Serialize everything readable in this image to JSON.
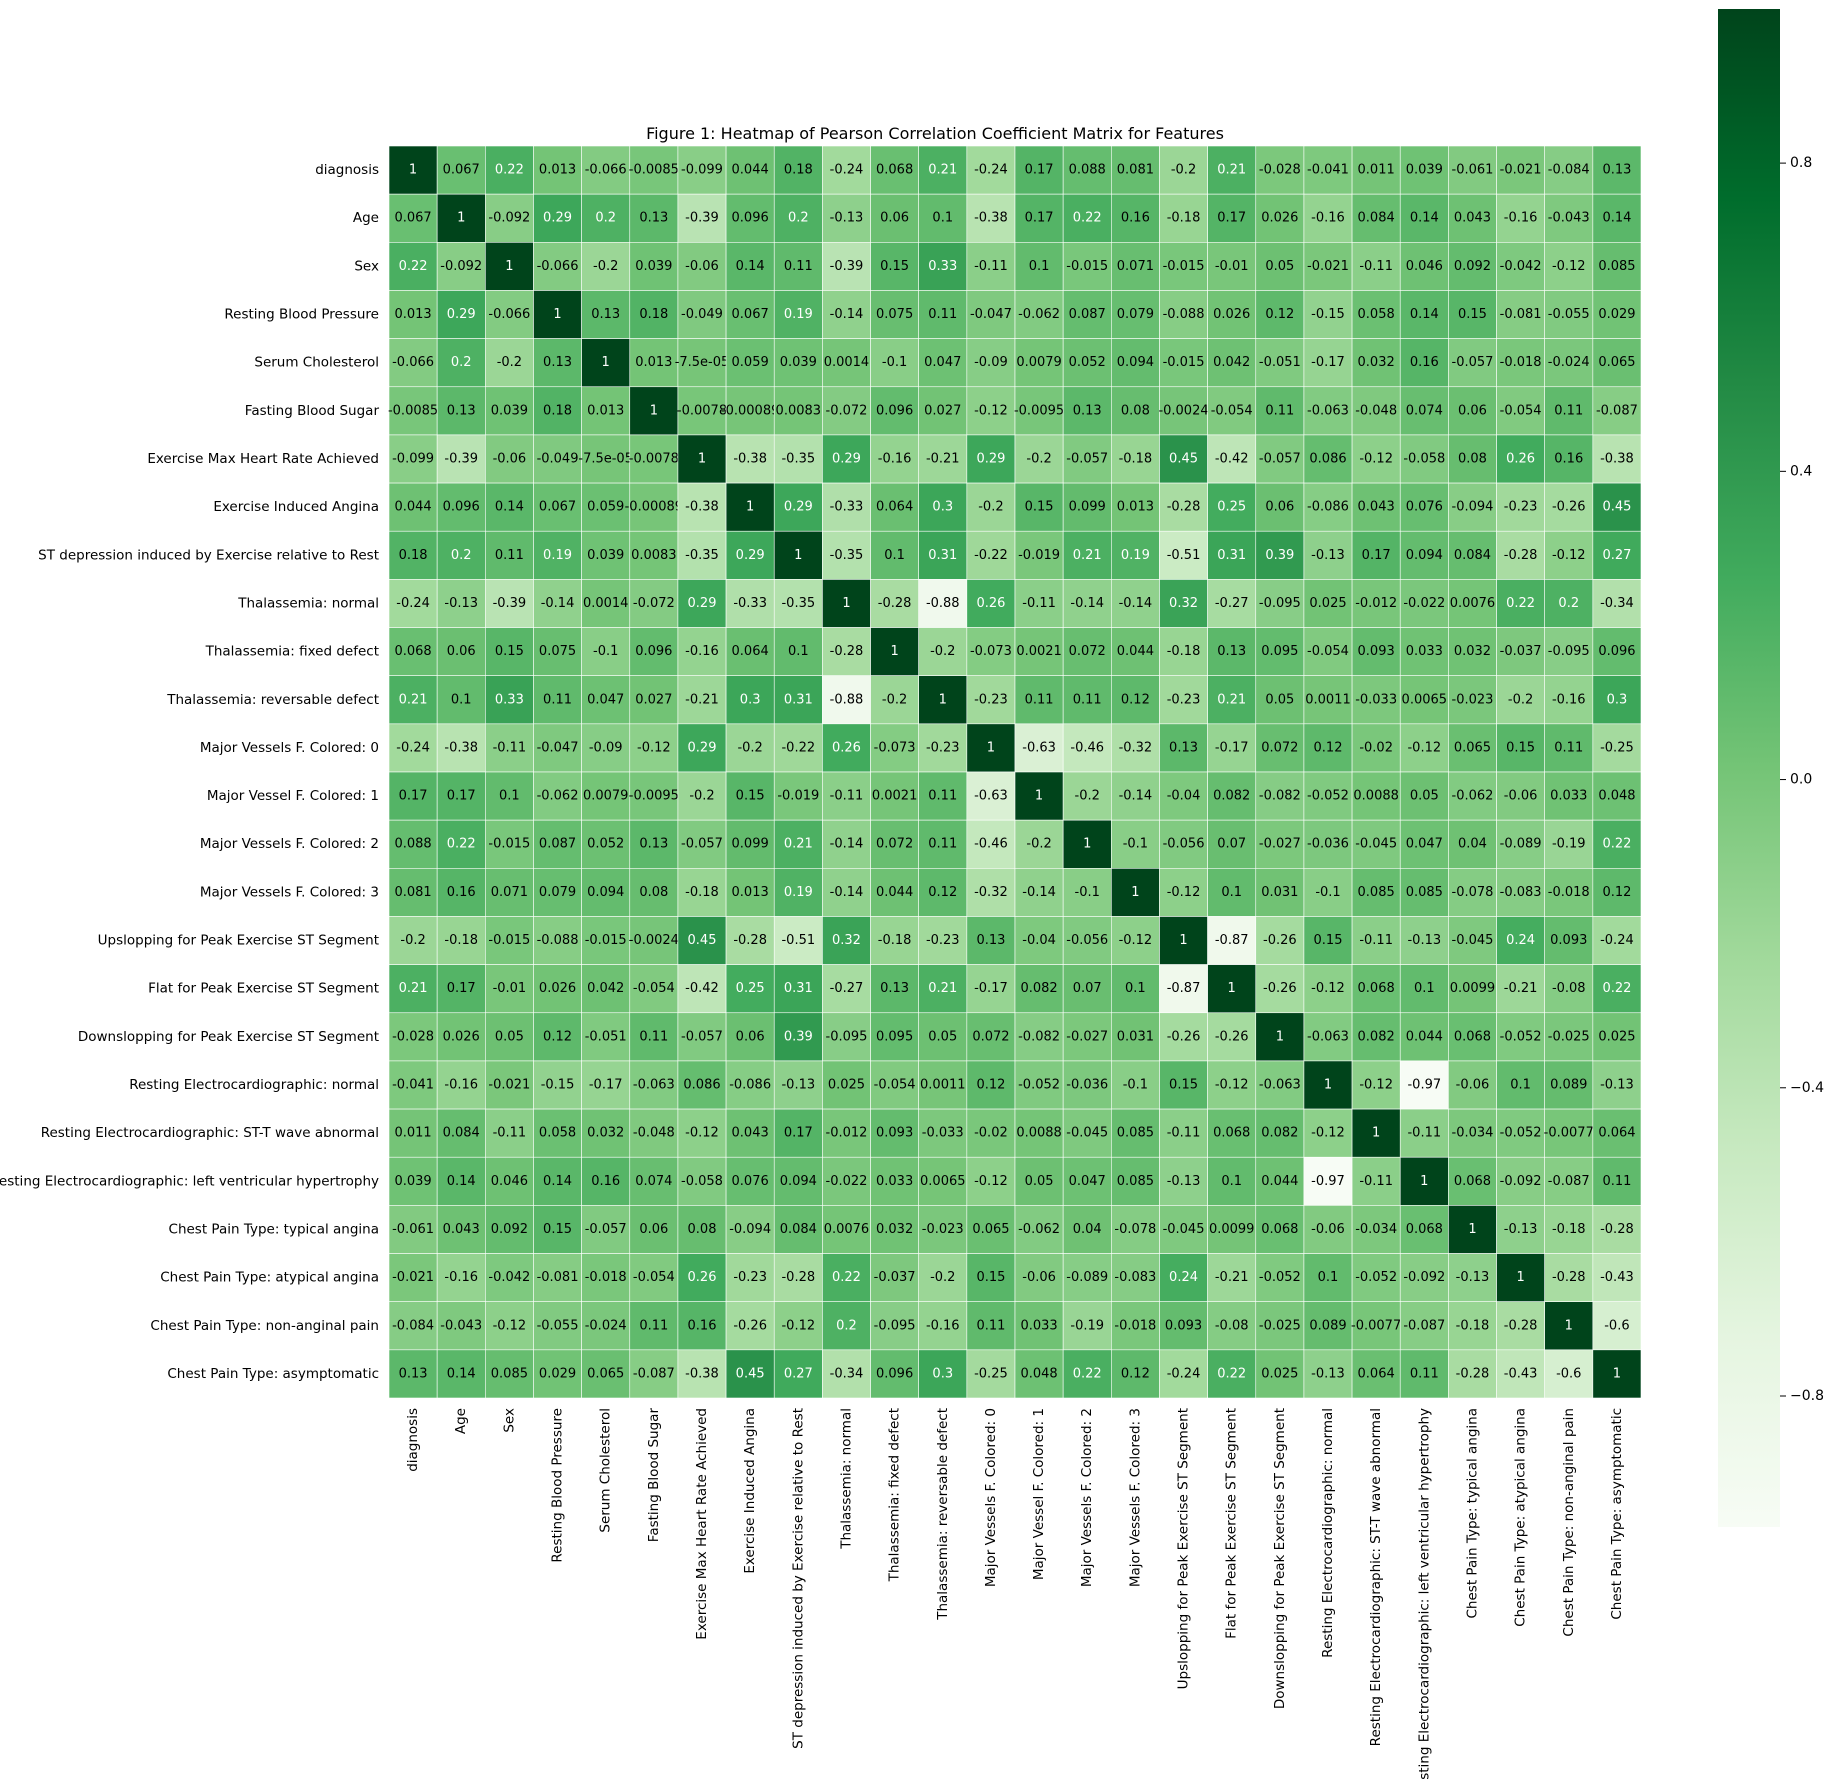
{
  "chart_data": {
    "type": "heatmap",
    "title": "Figure 1:  Heatmap of Pearson Correlation Coefficient Matrix for Features",
    "labels": [
      "diagnosis",
      "Age",
      "Sex",
      "Resting Blood Pressure",
      "Serum Cholesterol",
      "Fasting Blood Sugar",
      "Exercise Max Heart Rate Achieved",
      "Exercise Induced Angina",
      "ST depression induced by Exercise relative to Rest",
      "Thalassemia: normal",
      "Thalassemia: fixed defect",
      "Thalassemia: reversable defect",
      "Major Vessels F. Colored: 0",
      "Major Vessel F. Colored: 1",
      "Major Vessels F. Colored: 2",
      "Major Vessels F. Colored: 3",
      "Upslopping for Peak Exercise ST Segment",
      "Flat for Peak Exercise ST Segment",
      "Downslopping for Peak Exercise ST Segment",
      "Resting Electrocardiographic: normal",
      "Resting Electrocardiographic: ST-T wave abnormal",
      "Resting Electrocardiographic: left ventricular hypertrophy",
      "Chest Pain Type: typical angina",
      "Chest Pain Type: atypical angina",
      "Chest Pain Type: non-anginal pain",
      "Chest Pain Type: asymptomatic"
    ],
    "matrix": [
      [
        "1",
        "0.067",
        "0.22",
        "0.013",
        "-0.066",
        "-0.0085",
        "-0.099",
        "0.044",
        "0.18",
        "-0.24",
        "0.068",
        "0.21",
        "-0.24",
        "0.17",
        "0.088",
        "0.081",
        "-0.2",
        "0.21",
        "-0.028",
        "-0.041",
        "0.011",
        "0.039",
        "-0.061",
        "-0.021",
        "-0.084",
        "0.13"
      ],
      [
        "0.067",
        "1",
        "-0.092",
        "0.29",
        "0.2",
        "0.13",
        "-0.39",
        "0.096",
        "0.2",
        "-0.13",
        "0.06",
        "0.1",
        "-0.38",
        "0.17",
        "0.22",
        "0.16",
        "-0.18",
        "0.17",
        "0.026",
        "-0.16",
        "0.084",
        "0.14",
        "0.043",
        "-0.16",
        "-0.043",
        "0.14"
      ],
      [
        "0.22",
        "-0.092",
        "1",
        "-0.066",
        "-0.2",
        "0.039",
        "-0.06",
        "0.14",
        "0.11",
        "-0.39",
        "0.15",
        "0.33",
        "-0.11",
        "0.1",
        "-0.015",
        "0.071",
        "-0.015",
        "-0.01",
        "0.05",
        "-0.021",
        "-0.11",
        "0.046",
        "0.092",
        "-0.042",
        "-0.12",
        "0.085"
      ],
      [
        "0.013",
        "0.29",
        "-0.066",
        "1",
        "0.13",
        "0.18",
        "-0.049",
        "0.067",
        "0.19",
        "-0.14",
        "0.075",
        "0.11",
        "-0.047",
        "-0.062",
        "0.087",
        "0.079",
        "-0.088",
        "0.026",
        "0.12",
        "-0.15",
        "0.058",
        "0.14",
        "0.15",
        "-0.081",
        "-0.055",
        "0.029"
      ],
      [
        "-0.066",
        "0.2",
        "-0.2",
        "0.13",
        "1",
        "0.013",
        "-7.5e-05",
        "0.059",
        "0.039",
        "0.0014",
        "-0.1",
        "0.047",
        "-0.09",
        "0.0079",
        "0.052",
        "0.094",
        "-0.015",
        "0.042",
        "-0.051",
        "-0.17",
        "0.032",
        "0.16",
        "-0.057",
        "-0.018",
        "-0.024",
        "0.065"
      ],
      [
        "-0.0085",
        "0.13",
        "0.039",
        "0.18",
        "0.013",
        "1",
        "-0.0078",
        "-0.00089",
        "0.0083",
        "-0.072",
        "0.096",
        "0.027",
        "-0.12",
        "-0.0095",
        "0.13",
        "0.08",
        "-0.0024",
        "-0.054",
        "0.11",
        "-0.063",
        "-0.048",
        "0.074",
        "0.06",
        "-0.054",
        "0.11",
        "-0.087"
      ],
      [
        "-0.099",
        "-0.39",
        "-0.06",
        "-0.049",
        "-7.5e-05",
        "-0.0078",
        "1",
        "-0.38",
        "-0.35",
        "0.29",
        "-0.16",
        "-0.21",
        "0.29",
        "-0.2",
        "-0.057",
        "-0.18",
        "0.45",
        "-0.42",
        "-0.057",
        "0.086",
        "-0.12",
        "-0.058",
        "0.08",
        "0.26",
        "0.16",
        "-0.38"
      ],
      [
        "0.044",
        "0.096",
        "0.14",
        "0.067",
        "0.059",
        "-0.00089",
        "-0.38",
        "1",
        "0.29",
        "-0.33",
        "0.064",
        "0.3",
        "-0.2",
        "0.15",
        "0.099",
        "0.013",
        "-0.28",
        "0.25",
        "0.06",
        "-0.086",
        "0.043",
        "0.076",
        "-0.094",
        "-0.23",
        "-0.26",
        "0.45"
      ],
      [
        "0.18",
        "0.2",
        "0.11",
        "0.19",
        "0.039",
        "0.0083",
        "-0.35",
        "0.29",
        "1",
        "-0.35",
        "0.1",
        "0.31",
        "-0.22",
        "-0.019",
        "0.21",
        "0.19",
        "-0.51",
        "0.31",
        "0.39",
        "-0.13",
        "0.17",
        "0.094",
        "0.084",
        "-0.28",
        "-0.12",
        "0.27"
      ],
      [
        "-0.24",
        "-0.13",
        "-0.39",
        "-0.14",
        "0.0014",
        "-0.072",
        "0.29",
        "-0.33",
        "-0.35",
        "1",
        "-0.28",
        "-0.88",
        "0.26",
        "-0.11",
        "-0.14",
        "-0.14",
        "0.32",
        "-0.27",
        "-0.095",
        "0.025",
        "-0.012",
        "-0.022",
        "0.0076",
        "0.22",
        "0.2",
        "-0.34"
      ],
      [
        "0.068",
        "0.06",
        "0.15",
        "0.075",
        "-0.1",
        "0.096",
        "-0.16",
        "0.064",
        "0.1",
        "-0.28",
        "1",
        "-0.2",
        "-0.073",
        "0.0021",
        "0.072",
        "0.044",
        "-0.18",
        "0.13",
        "0.095",
        "-0.054",
        "0.093",
        "0.033",
        "0.032",
        "-0.037",
        "-0.095",
        "0.096"
      ],
      [
        "0.21",
        "0.1",
        "0.33",
        "0.11",
        "0.047",
        "0.027",
        "-0.21",
        "0.3",
        "0.31",
        "-0.88",
        "-0.2",
        "1",
        "-0.23",
        "0.11",
        "0.11",
        "0.12",
        "-0.23",
        "0.21",
        "0.05",
        "0.0011",
        "-0.033",
        "0.0065",
        "-0.023",
        "-0.2",
        "-0.16",
        "0.3"
      ],
      [
        "-0.24",
        "-0.38",
        "-0.11",
        "-0.047",
        "-0.09",
        "-0.12",
        "0.29",
        "-0.2",
        "-0.22",
        "0.26",
        "-0.073",
        "-0.23",
        "1",
        "-0.63",
        "-0.46",
        "-0.32",
        "0.13",
        "-0.17",
        "0.072",
        "0.12",
        "-0.02",
        "-0.12",
        "0.065",
        "0.15",
        "0.11",
        "-0.25"
      ],
      [
        "0.17",
        "0.17",
        "0.1",
        "-0.062",
        "0.0079",
        "-0.0095",
        "-0.2",
        "0.15",
        "-0.019",
        "-0.11",
        "0.0021",
        "0.11",
        "-0.63",
        "1",
        "-0.2",
        "-0.14",
        "-0.04",
        "0.082",
        "-0.082",
        "-0.052",
        "0.0088",
        "0.05",
        "-0.062",
        "-0.06",
        "0.033",
        "0.048"
      ],
      [
        "0.088",
        "0.22",
        "-0.015",
        "0.087",
        "0.052",
        "0.13",
        "-0.057",
        "0.099",
        "0.21",
        "-0.14",
        "0.072",
        "0.11",
        "-0.46",
        "-0.2",
        "1",
        "-0.1",
        "-0.056",
        "0.07",
        "-0.027",
        "-0.036",
        "-0.045",
        "0.047",
        "0.04",
        "-0.089",
        "-0.19",
        "0.22"
      ],
      [
        "0.081",
        "0.16",
        "0.071",
        "0.079",
        "0.094",
        "0.08",
        "-0.18",
        "0.013",
        "0.19",
        "-0.14",
        "0.044",
        "0.12",
        "-0.32",
        "-0.14",
        "-0.1",
        "1",
        "-0.12",
        "0.1",
        "0.031",
        "-0.1",
        "0.085",
        "0.085",
        "-0.078",
        "-0.083",
        "-0.018",
        "0.12"
      ],
      [
        "-0.2",
        "-0.18",
        "-0.015",
        "-0.088",
        "-0.015",
        "-0.0024",
        "0.45",
        "-0.28",
        "-0.51",
        "0.32",
        "-0.18",
        "-0.23",
        "0.13",
        "-0.04",
        "-0.056",
        "-0.12",
        "1",
        "-0.87",
        "-0.26",
        "0.15",
        "-0.11",
        "-0.13",
        "-0.045",
        "0.24",
        "0.093",
        "-0.24"
      ],
      [
        "0.21",
        "0.17",
        "-0.01",
        "0.026",
        "0.042",
        "-0.054",
        "-0.42",
        "0.25",
        "0.31",
        "-0.27",
        "0.13",
        "0.21",
        "-0.17",
        "0.082",
        "0.07",
        "0.1",
        "-0.87",
        "1",
        "-0.26",
        "-0.12",
        "0.068",
        "0.1",
        "0.0099",
        "-0.21",
        "-0.08",
        "0.22"
      ],
      [
        "-0.028",
        "0.026",
        "0.05",
        "0.12",
        "-0.051",
        "0.11",
        "-0.057",
        "0.06",
        "0.39",
        "-0.095",
        "0.095",
        "0.05",
        "0.072",
        "-0.082",
        "-0.027",
        "0.031",
        "-0.26",
        "-0.26",
        "1",
        "-0.063",
        "0.082",
        "0.044",
        "0.068",
        "-0.052",
        "-0.025",
        "0.025"
      ],
      [
        "-0.041",
        "-0.16",
        "-0.021",
        "-0.15",
        "-0.17",
        "-0.063",
        "0.086",
        "-0.086",
        "-0.13",
        "0.025",
        "-0.054",
        "0.0011",
        "0.12",
        "-0.052",
        "-0.036",
        "-0.1",
        "0.15",
        "-0.12",
        "-0.063",
        "1",
        "-0.12",
        "-0.97",
        "-0.06",
        "0.1",
        "0.089",
        "-0.13"
      ],
      [
        "0.011",
        "0.084",
        "-0.11",
        "0.058",
        "0.032",
        "-0.048",
        "-0.12",
        "0.043",
        "0.17",
        "-0.012",
        "0.093",
        "-0.033",
        "-0.02",
        "0.0088",
        "-0.045",
        "0.085",
        "-0.11",
        "0.068",
        "0.082",
        "-0.12",
        "1",
        "-0.11",
        "-0.034",
        "-0.052",
        "-0.0077",
        "0.064"
      ],
      [
        "0.039",
        "0.14",
        "0.046",
        "0.14",
        "0.16",
        "0.074",
        "-0.058",
        "0.076",
        "0.094",
        "-0.022",
        "0.033",
        "0.0065",
        "-0.12",
        "0.05",
        "0.047",
        "0.085",
        "-0.13",
        "0.1",
        "0.044",
        "-0.97",
        "-0.11",
        "1",
        "0.068",
        "-0.092",
        "-0.087",
        "0.11"
      ],
      [
        "-0.061",
        "0.043",
        "0.092",
        "0.15",
        "-0.057",
        "0.06",
        "0.08",
        "-0.094",
        "0.084",
        "0.0076",
        "0.032",
        "-0.023",
        "0.065",
        "-0.062",
        "0.04",
        "-0.078",
        "-0.045",
        "0.0099",
        "0.068",
        "-0.06",
        "-0.034",
        "0.068",
        "1",
        "-0.13",
        "-0.18",
        "-0.28"
      ],
      [
        "-0.021",
        "-0.16",
        "-0.042",
        "-0.081",
        "-0.018",
        "-0.054",
        "0.26",
        "-0.23",
        "-0.28",
        "0.22",
        "-0.037",
        "-0.2",
        "0.15",
        "-0.06",
        "-0.089",
        "-0.083",
        "0.24",
        "-0.21",
        "-0.052",
        "0.1",
        "-0.052",
        "-0.092",
        "-0.13",
        "1",
        "-0.28",
        "-0.43"
      ],
      [
        "-0.084",
        "-0.043",
        "-0.12",
        "-0.055",
        "-0.024",
        "0.11",
        "0.16",
        "-0.26",
        "-0.12",
        "0.2",
        "-0.095",
        "-0.16",
        "0.11",
        "0.033",
        "-0.19",
        "-0.018",
        "0.093",
        "-0.08",
        "-0.025",
        "0.089",
        "-0.0077",
        "-0.087",
        "-0.18",
        "-0.28",
        "1",
        "-0.6"
      ],
      [
        "0.13",
        "0.14",
        "0.085",
        "0.029",
        "0.065",
        "-0.087",
        "-0.38",
        "0.45",
        "0.27",
        "-0.34",
        "0.096",
        "0.3",
        "-0.25",
        "0.048",
        "0.22",
        "0.12",
        "-0.24",
        "0.22",
        "0.025",
        "-0.13",
        "0.064",
        "0.11",
        "-0.28",
        "-0.43",
        "-0.6",
        "1"
      ]
    ],
    "colorbar": {
      "range": [
        -0.97,
        1
      ],
      "ticks": [
        -0.8,
        -0.4,
        0.0,
        0.4,
        0.8
      ],
      "tick_labels": [
        "−0.8",
        "−0.4",
        "0.0",
        "0.4",
        "0.8"
      ],
      "colors": [
        "#f7fcf5",
        "#e5f5e0",
        "#c7e9c0",
        "#a1d99b",
        "#74c476",
        "#41ab5d",
        "#238b45",
        "#006d2c",
        "#00441b"
      ]
    },
    "grid": false,
    "legend": "right"
  }
}
